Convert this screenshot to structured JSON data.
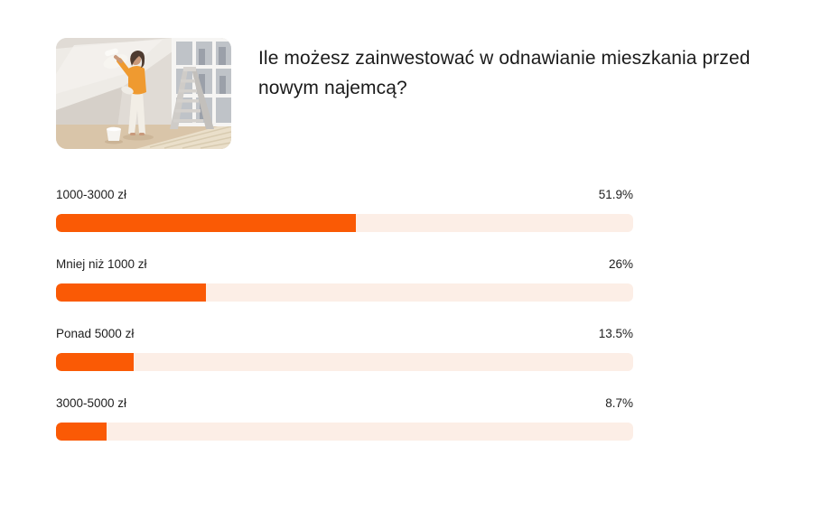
{
  "poll": {
    "title": "Ile możesz zainwestować w odnawianie mieszkania przed nowym najemcą?",
    "image_alt": "Kobieta malująca ścianę wałkiem podczas remontu mieszkania",
    "options": [
      {
        "label": "1000-3000 zł",
        "percent": 51.9,
        "percent_label": "51.9%"
      },
      {
        "label": "Mniej niż 1000 zł",
        "percent": 26,
        "percent_label": "26%"
      },
      {
        "label": "Ponad 5000 zł",
        "percent": 13.5,
        "percent_label": "13.5%"
      },
      {
        "label": "3000-5000 zł",
        "percent": 8.7,
        "percent_label": "8.7%"
      }
    ],
    "colors": {
      "bar_fill": "#fa5a05",
      "bar_track": "#fceee6",
      "text": "#1e1e1e"
    }
  },
  "chart_data": {
    "type": "bar",
    "orientation": "horizontal",
    "title": "Ile możesz zainwestować w odnawianie mieszkania przed nowym najemcą?",
    "categories": [
      "1000-3000 zł",
      "Mniej niż 1000 zł",
      "Ponad 5000 zł",
      "3000-5000 zł"
    ],
    "values": [
      51.9,
      26,
      13.5,
      8.7
    ],
    "value_labels": [
      "51.9%",
      "26%",
      "13.5%",
      "8.7%"
    ],
    "unit": "%",
    "xlim": [
      0,
      100
    ],
    "grid": false,
    "legend": false
  }
}
